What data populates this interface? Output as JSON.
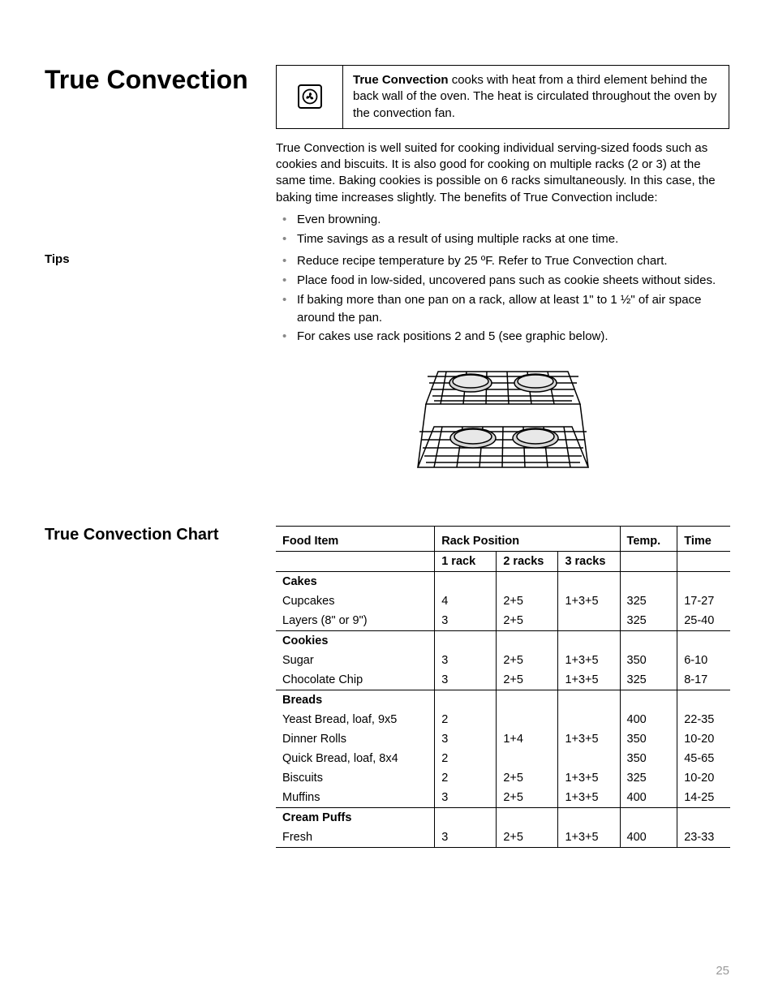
{
  "page": {
    "title": "True Convection",
    "pageNumber": "25"
  },
  "introBox": {
    "boldLead": "True Convection",
    "textAfterBold": " cooks with heat from a third element behind the back wall of the oven. The heat is circulated throughout the oven by the convection fan."
  },
  "bodyParagraph": "True Convection is well suited for cooking individual serving-sized foods such as cookies and biscuits. It is also good for cooking on multiple racks (2 or 3) at the same time. Baking cookies is possible on 6 racks simultaneously. In this case, the baking time increases slightly. The benefits of True Convection include:",
  "benefits": [
    "Even browning.",
    "Time savings as a result of using multiple racks at one time."
  ],
  "tipsLabel": "Tips",
  "tips": [
    "Reduce recipe temperature by 25 ºF. Refer to True Convection chart.",
    "Place food in low-sided, uncovered pans such as cookie sheets without sides.",
    "If baking more than one pan on a rack, allow at least 1\" to 1 ½\" of air space around the pan.",
    "For cakes use rack positions 2 and 5 (see graphic below)."
  ],
  "chart": {
    "title": "True Convection Chart",
    "columns": {
      "food": "Food Item",
      "rackPosition": "Rack Position",
      "r1": "1 rack",
      "r2": "2 racks",
      "r3": "3 racks",
      "temp": "Temp.",
      "time": "Time"
    },
    "groups": [
      {
        "name": "Cakes",
        "rows": [
          {
            "food": "Cupcakes",
            "r1": "4",
            "r2": "2+5",
            "r3": "1+3+5",
            "temp": "325",
            "time": "17-27"
          },
          {
            "food": "Layers (8\" or 9\")",
            "r1": "3",
            "r2": "2+5",
            "r3": "",
            "temp": "325",
            "time": "25-40"
          }
        ]
      },
      {
        "name": "Cookies",
        "rows": [
          {
            "food": "Sugar",
            "r1": "3",
            "r2": "2+5",
            "r3": "1+3+5",
            "temp": "350",
            "time": "6-10"
          },
          {
            "food": "Chocolate Chip",
            "r1": "3",
            "r2": "2+5",
            "r3": "1+3+5",
            "temp": "325",
            "time": "8-17"
          }
        ]
      },
      {
        "name": "Breads",
        "rows": [
          {
            "food": "Yeast Bread, loaf, 9x5",
            "r1": "2",
            "r2": "",
            "r3": "",
            "temp": "400",
            "time": "22-35"
          },
          {
            "food": "Dinner Rolls",
            "r1": "3",
            "r2": "1+4",
            "r3": "1+3+5",
            "temp": "350",
            "time": "10-20"
          },
          {
            "food": "Quick Bread, loaf, 8x4",
            "r1": "2",
            "r2": "",
            "r3": "",
            "temp": "350",
            "time": "45-65"
          },
          {
            "food": "Biscuits",
            "r1": "2",
            "r2": "2+5",
            "r3": "1+3+5",
            "temp": "325",
            "time": "10-20"
          },
          {
            "food": "Muffins",
            "r1": "3",
            "r2": "2+5",
            "r3": "1+3+5",
            "temp": "400",
            "time": "14-25"
          }
        ]
      },
      {
        "name": "Cream Puffs",
        "rows": [
          {
            "food": "Fresh",
            "r1": "3",
            "r2": "2+5",
            "r3": "1+3+5",
            "temp": "400",
            "time": "23-33"
          }
        ]
      }
    ]
  },
  "colors": {
    "text": "#000000",
    "pageNum": "#999999",
    "bullet": "#888888",
    "border": "#000000",
    "background": "#ffffff"
  }
}
